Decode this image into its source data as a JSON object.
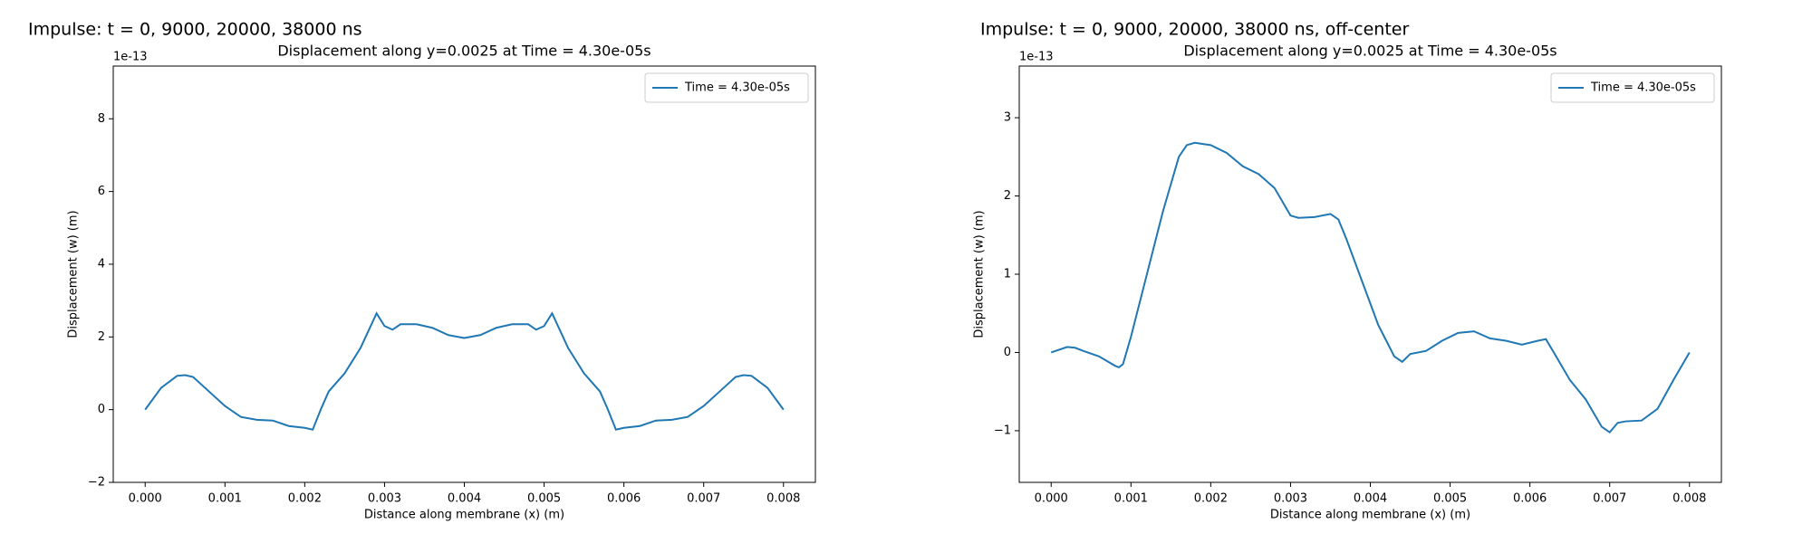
{
  "chart_data": [
    {
      "type": "line",
      "heading": "Impulse: t = 0, 9000, 20000, 38000 ns",
      "title": "Displacement along y=0.0025 at Time = 4.30e-05s",
      "offset_label": "1e-13",
      "xlabel": "Distance along membrane (x) (m)",
      "ylabel": "Displacement (w) (m)",
      "legend": "upper right",
      "xlim": [
        -0.0004,
        0.0084
      ],
      "ylim": [
        -2,
        9.45
      ],
      "xticks": [
        {
          "value": 0,
          "label": "0.000"
        },
        {
          "value": 0.001,
          "label": "0.001"
        },
        {
          "value": 0.002,
          "label": "0.002"
        },
        {
          "value": 0.003,
          "label": "0.003"
        },
        {
          "value": 0.004,
          "label": "0.004"
        },
        {
          "value": 0.005,
          "label": "0.005"
        },
        {
          "value": 0.006,
          "label": "0.006"
        },
        {
          "value": 0.007,
          "label": "0.007"
        },
        {
          "value": 0.008,
          "label": "0.008"
        }
      ],
      "yticks": [
        {
          "value": -2,
          "label": "−2"
        },
        0,
        2,
        4,
        6,
        8
      ],
      "x": [
        0,
        0.0002,
        0.0004,
        0.0005,
        0.0006,
        0.0008,
        0.001,
        0.0012,
        0.0014,
        0.0016,
        0.0018,
        0.002,
        0.0021,
        0.0022,
        0.0023,
        0.0025,
        0.0027,
        0.0029,
        0.003,
        0.0031,
        0.0032,
        0.0034,
        0.0036,
        0.0038,
        0.004,
        0.0042,
        0.0044,
        0.0046,
        0.0048,
        0.0049,
        0.005,
        0.0051,
        0.0053,
        0.0055,
        0.0057,
        0.0058,
        0.0059,
        0.006,
        0.0062,
        0.0064,
        0.0066,
        0.0068,
        0.007,
        0.0072,
        0.0074,
        0.0075,
        0.0076,
        0.0078,
        0.008
      ],
      "series": [
        {
          "name": "Time = 4.30e-05s",
          "color": "#1f77b4",
          "values": [
            0,
            0.6,
            0.93,
            0.95,
            0.9,
            0.5,
            0.1,
            -0.2,
            -0.28,
            -0.3,
            -0.45,
            -0.5,
            -0.55,
            0.0,
            0.5,
            1.0,
            1.7,
            2.65,
            2.3,
            2.2,
            2.35,
            2.35,
            2.25,
            2.05,
            1.97,
            2.05,
            2.25,
            2.35,
            2.35,
            2.2,
            2.3,
            2.65,
            1.7,
            1.0,
            0.5,
            0.0,
            -0.55,
            -0.5,
            -0.45,
            -0.3,
            -0.28,
            -0.2,
            0.1,
            0.5,
            0.9,
            0.95,
            0.93,
            0.6,
            0
          ]
        }
      ]
    },
    {
      "type": "line",
      "heading": "Impulse: t = 0, 9000, 20000, 38000 ns, off-center",
      "title": "Displacement along y=0.0025 at Time = 4.30e-05s",
      "offset_label": "1e-13",
      "xlabel": "Distance along membrane (x) (m)",
      "ylabel": "Displacement (w) (m)",
      "legend": "upper right",
      "xlim": [
        -0.0004,
        0.0084
      ],
      "ylim": [
        -1.66,
        3.66
      ],
      "xticks": [
        {
          "value": 0,
          "label": "0.000"
        },
        {
          "value": 0.001,
          "label": "0.001"
        },
        {
          "value": 0.002,
          "label": "0.002"
        },
        {
          "value": 0.003,
          "label": "0.003"
        },
        {
          "value": 0.004,
          "label": "0.004"
        },
        {
          "value": 0.005,
          "label": "0.005"
        },
        {
          "value": 0.006,
          "label": "0.006"
        },
        {
          "value": 0.007,
          "label": "0.007"
        },
        {
          "value": 0.008,
          "label": "0.008"
        }
      ],
      "yticks": [
        {
          "value": -1,
          "label": "−1"
        },
        0,
        1,
        2,
        3
      ],
      "x": [
        0,
        0.0002,
        0.0003,
        0.0004,
        0.0006,
        0.0008,
        0.00085,
        0.0009,
        0.001,
        0.0012,
        0.0014,
        0.0016,
        0.0017,
        0.0018,
        0.002,
        0.0022,
        0.0024,
        0.0026,
        0.0028,
        0.003,
        0.0031,
        0.0033,
        0.0035,
        0.0036,
        0.0037,
        0.0039,
        0.0041,
        0.0043,
        0.0044,
        0.0045,
        0.0047,
        0.0049,
        0.0051,
        0.0053,
        0.0055,
        0.0057,
        0.0059,
        0.0061,
        0.0062,
        0.0063,
        0.0065,
        0.0067,
        0.0069,
        0.007,
        0.0071,
        0.0072,
        0.0074,
        0.0076,
        0.0078,
        0.008
      ],
      "series": [
        {
          "name": "Time = 4.30e-05s",
          "color": "#1f77b4",
          "values": [
            0,
            0.07,
            0.06,
            0.02,
            -0.05,
            -0.17,
            -0.19,
            -0.15,
            0.2,
            1.0,
            1.8,
            2.5,
            2.65,
            2.68,
            2.65,
            2.55,
            2.38,
            2.28,
            2.1,
            1.75,
            1.72,
            1.73,
            1.77,
            1.7,
            1.45,
            0.9,
            0.35,
            -0.05,
            -0.12,
            -0.02,
            0.02,
            0.15,
            0.25,
            0.27,
            0.18,
            0.15,
            0.1,
            0.15,
            0.17,
            0.0,
            -0.35,
            -0.6,
            -0.95,
            -1.02,
            -0.9,
            -0.88,
            -0.87,
            -0.72,
            -0.35,
            0
          ]
        }
      ]
    }
  ]
}
